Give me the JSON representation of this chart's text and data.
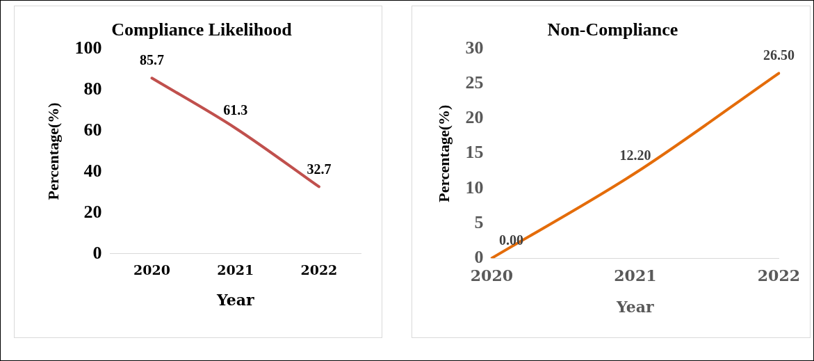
{
  "chart_data": [
    {
      "type": "line",
      "title": "Compliance Likelihood",
      "xlabel": "Year",
      "ylabel": "Percentage(%)",
      "categories": [
        "2020",
        "2021",
        "2022"
      ],
      "series": [
        {
          "color": "#c0504d",
          "values": [
            85.7,
            61.3,
            32.7
          ]
        }
      ],
      "ylim": [
        0,
        100
      ],
      "yticks": [
        0,
        20,
        40,
        60,
        80,
        100
      ],
      "data_labels": true,
      "grid": false,
      "legend": false,
      "marker": "none"
    },
    {
      "type": "line",
      "title": "Non-Compliance",
      "xlabel": "Year",
      "ylabel": "Percentage(%)",
      "categories": [
        "2020",
        "2021",
        "2022"
      ],
      "series": [
        {
          "color": "#e46c0a",
          "values": [
            0,
            12.2,
            26.5
          ],
          "value_labels": [
            "0.00",
            "12.20",
            "26.50"
          ]
        }
      ],
      "ylim": [
        0,
        30
      ],
      "yticks": [
        0,
        5,
        10,
        15,
        20,
        25,
        30
      ],
      "grid": false,
      "legend": false,
      "marker": "none"
    }
  ]
}
